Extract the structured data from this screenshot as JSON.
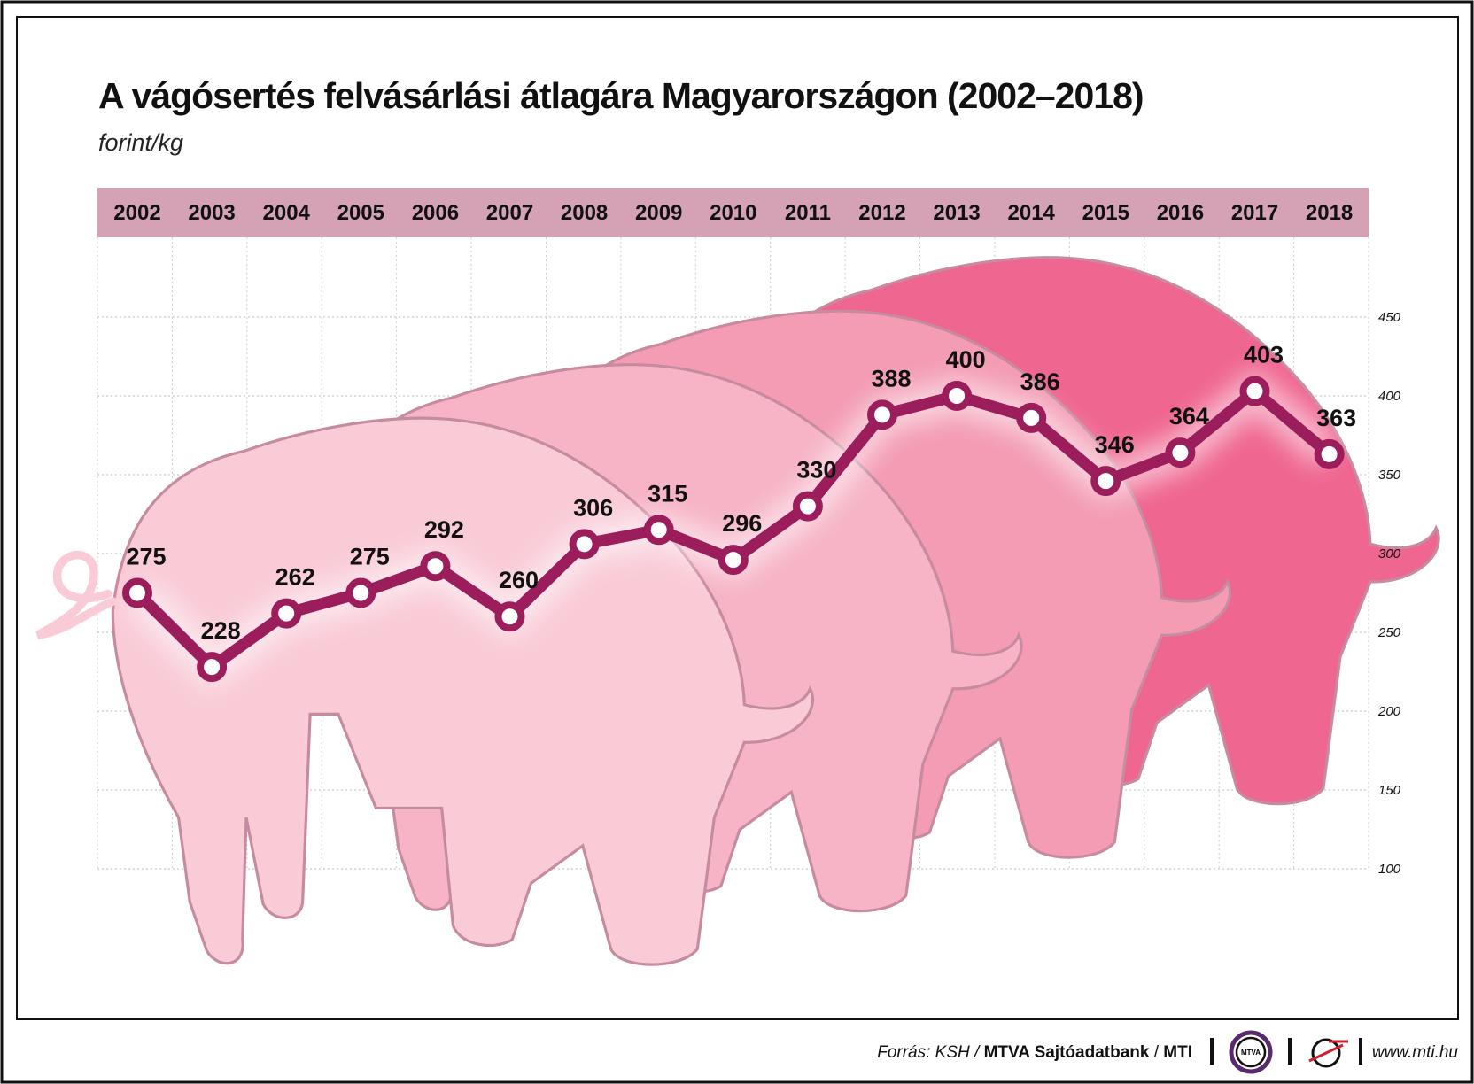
{
  "chart_data": {
    "type": "line",
    "title": "A vágósertés felvásárlási átlagára Magyarországon (2002–2018)",
    "subtitle": "forint/kg",
    "categories": [
      "2002",
      "2003",
      "2004",
      "2005",
      "2006",
      "2007",
      "2008",
      "2009",
      "2010",
      "2011",
      "2012",
      "2013",
      "2014",
      "2015",
      "2016",
      "2017",
      "2018"
    ],
    "values": [
      275,
      228,
      262,
      275,
      292,
      260,
      306,
      315,
      296,
      330,
      388,
      400,
      386,
      346,
      364,
      403,
      363
    ],
    "ylim": [
      100,
      450
    ],
    "yticks": [
      "100",
      "150",
      "200",
      "250",
      "300",
      "350",
      "400",
      "450"
    ],
    "grid": true,
    "colors": {
      "line": "#9b1d5c",
      "band": "#d4a1b5",
      "pigs": [
        "#f9cbd7",
        "#f6b4c6",
        "#f39cb4",
        "#ef6690"
      ]
    }
  },
  "footer": {
    "source_prefix": "Forrás: KSH / ",
    "source_bold": "MTVA Sajtóadatbank",
    "sep": " / ",
    "mti": "MTI",
    "logo1": "MTVA",
    "url": "www.mti.hu"
  }
}
